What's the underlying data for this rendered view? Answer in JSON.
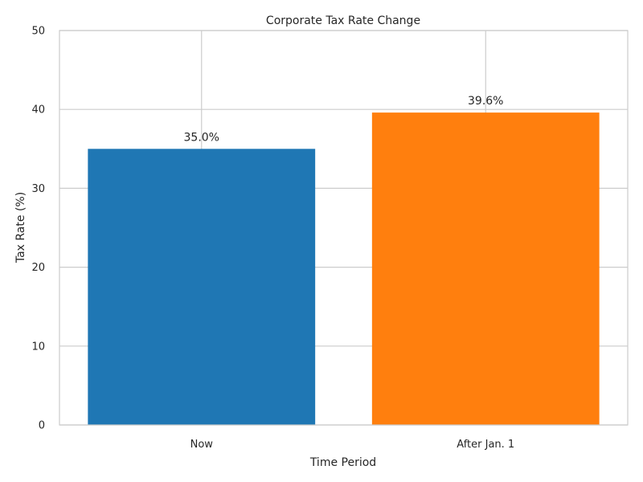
{
  "chart_data": {
    "type": "bar",
    "title": "Corporate Tax Rate Change",
    "xlabel": "Time Period",
    "ylabel": "Tax Rate (%)",
    "categories": [
      "Now",
      "After Jan. 1"
    ],
    "values": [
      35.0,
      39.6
    ],
    "value_labels": [
      "35.0%",
      "39.6%"
    ],
    "colors": [
      "#1f77b4",
      "#ff7f0e"
    ],
    "ylim": [
      0,
      50
    ],
    "yticks": [
      0,
      10,
      20,
      30,
      40,
      50
    ],
    "grid": true
  }
}
